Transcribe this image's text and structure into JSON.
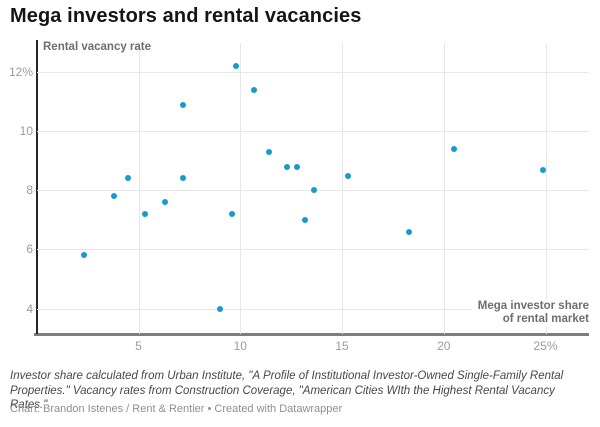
{
  "title": "Mega investors and rental vacancies",
  "axis": {
    "y_title": "Rental vacancy rate",
    "x_title_line1": "Mega investor share",
    "x_title_line2": "of rental market"
  },
  "footer": {
    "notes": "Investor share calculated from Urban Institute, \"A Profile of Institutional Investor-Owned Single-Family Rental Properties.\" Vacancy rates from Construction Coverage, \"American Cities WIth the Highest Rental Vacancy Rates.\"",
    "credit": "Chart: Brandon Istenes / Rent & Rentier • Created with Datawrapper"
  },
  "chart_data": {
    "type": "scatter",
    "title": "Mega investors and rental vacancies",
    "xlabel": "Mega investor share of rental market",
    "ylabel": "Rental vacancy rate",
    "xlim": [
      0,
      27.1
    ],
    "ylim": [
      3.1,
      13.0
    ],
    "grid": true,
    "point_color": "#189acd",
    "x_ticks": [
      {
        "value": 5,
        "label": "5"
      },
      {
        "value": 10,
        "label": "10"
      },
      {
        "value": 15,
        "label": "15"
      },
      {
        "value": 20,
        "label": "20"
      },
      {
        "value": 25,
        "label": "25%"
      }
    ],
    "y_ticks": [
      {
        "value": 4,
        "label": "4"
      },
      {
        "value": 6,
        "label": "6"
      },
      {
        "value": 8,
        "label": "8"
      },
      {
        "value": 10,
        "label": "10"
      },
      {
        "value": 12,
        "label": "12%"
      }
    ],
    "points": [
      {
        "x": 2.3,
        "y": 5.8
      },
      {
        "x": 3.8,
        "y": 7.8
      },
      {
        "x": 4.5,
        "y": 8.4
      },
      {
        "x": 5.3,
        "y": 7.2
      },
      {
        "x": 6.3,
        "y": 7.6
      },
      {
        "x": 7.2,
        "y": 10.9
      },
      {
        "x": 7.2,
        "y": 8.4
      },
      {
        "x": 9.0,
        "y": 4.0
      },
      {
        "x": 9.6,
        "y": 7.2
      },
      {
        "x": 9.8,
        "y": 12.2
      },
      {
        "x": 10.7,
        "y": 11.4
      },
      {
        "x": 11.4,
        "y": 9.3
      },
      {
        "x": 12.3,
        "y": 8.8
      },
      {
        "x": 12.8,
        "y": 8.8
      },
      {
        "x": 13.2,
        "y": 7.0
      },
      {
        "x": 13.6,
        "y": 8.0
      },
      {
        "x": 15.3,
        "y": 8.5
      },
      {
        "x": 18.3,
        "y": 6.6
      },
      {
        "x": 20.5,
        "y": 9.4
      },
      {
        "x": 24.9,
        "y": 8.7
      }
    ]
  }
}
